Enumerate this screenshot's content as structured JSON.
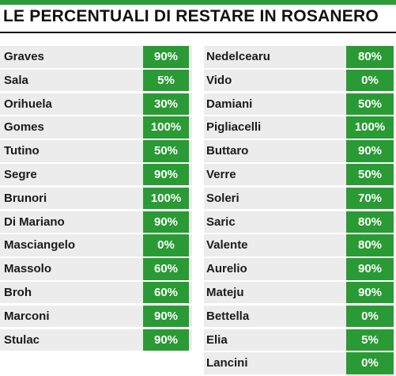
{
  "title": "LE PERCENTUALI DI RESTARE IN ROSANERO",
  "colors": {
    "accent_green": "#2a9a35",
    "row_bg": "#ececec"
  },
  "left_column": [
    {
      "name": "Graves",
      "percent": "90%"
    },
    {
      "name": "Sala",
      "percent": "5%"
    },
    {
      "name": "Orihuela",
      "percent": "30%"
    },
    {
      "name": "Gomes",
      "percent": "100%"
    },
    {
      "name": "Tutino",
      "percent": "50%"
    },
    {
      "name": "Segre",
      "percent": "90%"
    },
    {
      "name": "Brunori",
      "percent": "100%"
    },
    {
      "name": "Di Mariano",
      "percent": "90%"
    },
    {
      "name": "Masciangelo",
      "percent": "0%"
    },
    {
      "name": "Massolo",
      "percent": "60%"
    },
    {
      "name": "Broh",
      "percent": "60%"
    },
    {
      "name": "Marconi",
      "percent": "90%"
    },
    {
      "name": "Stulac",
      "percent": "90%"
    }
  ],
  "right_column": [
    {
      "name": "Nedelcearu",
      "percent": "80%"
    },
    {
      "name": "Vido",
      "percent": "0%"
    },
    {
      "name": "Damiani",
      "percent": "50%"
    },
    {
      "name": "Pigliacelli",
      "percent": "100%"
    },
    {
      "name": "Buttaro",
      "percent": "90%"
    },
    {
      "name": "Verre",
      "percent": "50%"
    },
    {
      "name": "Soleri",
      "percent": "70%"
    },
    {
      "name": "Saric",
      "percent": "80%"
    },
    {
      "name": "Valente",
      "percent": "80%"
    },
    {
      "name": "Aurelio",
      "percent": "90%"
    },
    {
      "name": "Mateju",
      "percent": "90%"
    },
    {
      "name": "Bettella",
      "percent": "0%"
    },
    {
      "name": "Elia",
      "percent": "5%"
    },
    {
      "name": "Lancini",
      "percent": "0%"
    }
  ]
}
